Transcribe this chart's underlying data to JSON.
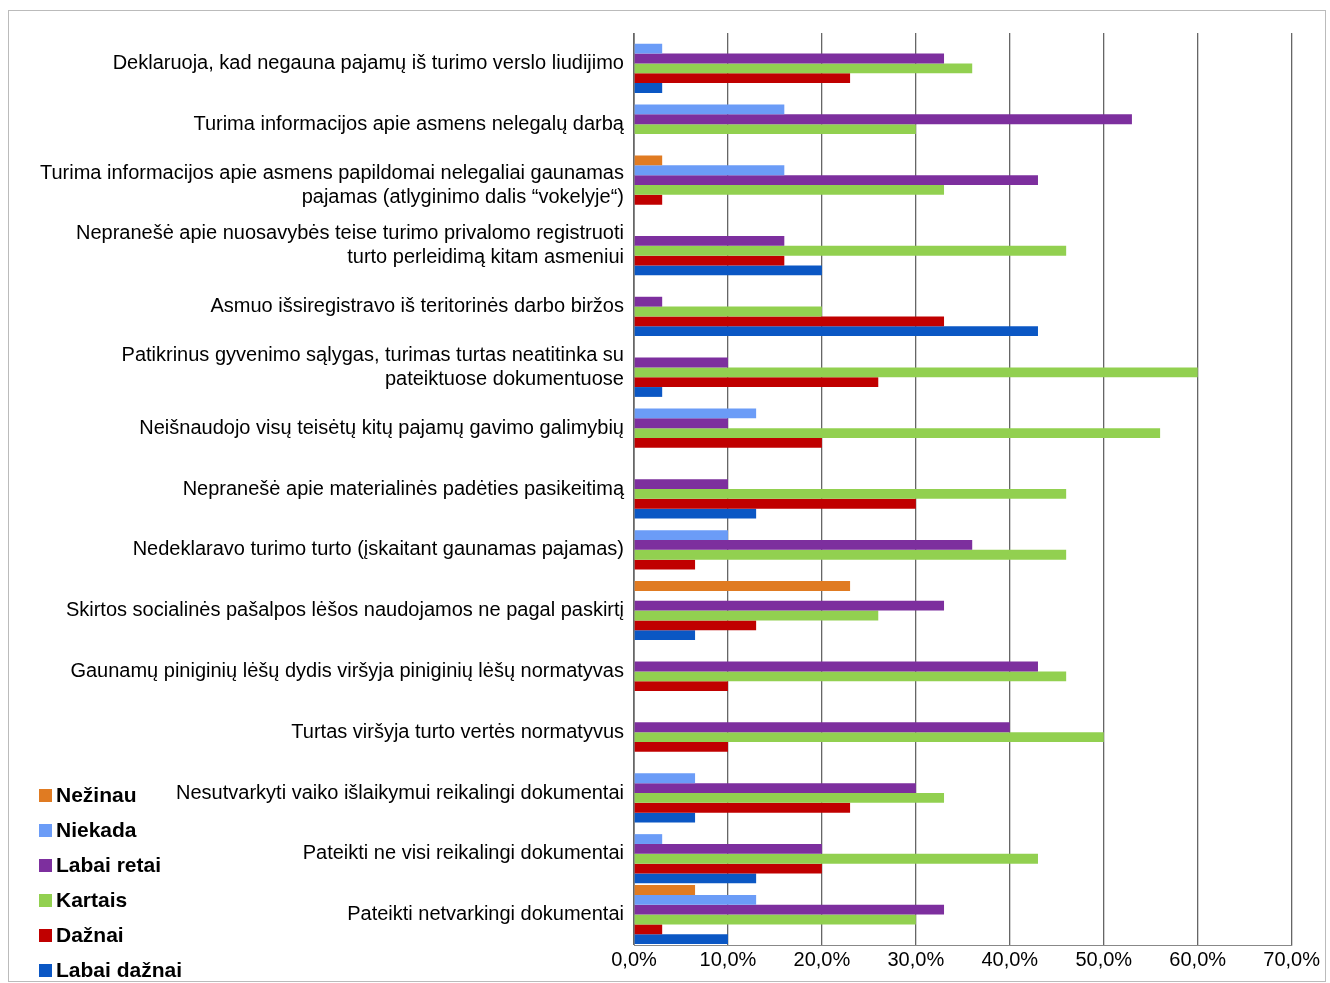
{
  "chart_data": {
    "type": "bar",
    "orientation": "horizontal",
    "categories": [
      "Deklaruoja, kad negauna pajamų iš turimo verslo liudijimo",
      "Turima informacijos apie asmens nelegalų darbą",
      "Turima informacijos apie asmens papildomai nelegaliai gaunamas pajamas (atlyginimo dalis “vokelyje“)",
      "Nepranešė apie nuosavybės teise turimo privalomo registruoti turto perleidimą kitam asmeniui",
      "Asmuo išsiregistravo iš teritorinės darbo biržos",
      "Patikrinus gyvenimo sąlygas, turimas turtas neatitinka su pateiktuose dokumentuose",
      "Neišnaudojo visų teisėtų kitų pajamų gavimo galimybių",
      "Nepranešė apie materialinės padėties pasikeitimą",
      "Nedeklaravo turimo turto (įskaitant gaunamas pajamas)",
      "Skirtos socialinės pašalpos lėšos naudojamos ne pagal paskirtį",
      "Gaunamų piniginių lėšų dydis viršyja piniginių lėšų normatyvas",
      "Turtas viršyja turto vertės normatyvus",
      "Nesutvarkyti vaiko išlaikymui reikalingi dokumentai",
      "Pateikti ne visi reikalingi dokumentai",
      "Pateikti netvarkingi dokumentai"
    ],
    "series": [
      {
        "name": "Nežinau",
        "color": "#e07b22",
        "values": [
          null,
          null,
          3,
          null,
          null,
          null,
          null,
          null,
          null,
          23,
          null,
          null,
          null,
          null,
          6.5
        ]
      },
      {
        "name": "Niekada",
        "color": "#6b9cf7",
        "values": [
          3,
          16,
          16,
          null,
          null,
          null,
          13,
          null,
          10,
          null,
          null,
          null,
          6.5,
          3,
          13
        ]
      },
      {
        "name": "Labai retai",
        "color": "#7d2f9e",
        "values": [
          33,
          53,
          43,
          16,
          3,
          10,
          10,
          10,
          36,
          33,
          43,
          40,
          30,
          20,
          33
        ]
      },
      {
        "name": "Kartais",
        "color": "#92d050",
        "values": [
          36,
          30,
          33,
          46,
          20,
          60,
          56,
          46,
          46,
          26,
          46,
          50,
          33,
          43,
          30
        ]
      },
      {
        "name": "Dažnai",
        "color": "#c00000",
        "values": [
          23,
          null,
          3,
          16,
          33,
          26,
          20,
          30,
          6.5,
          13,
          10,
          10,
          23,
          20,
          3
        ]
      },
      {
        "name": "Labai dažnai",
        "color": "#0b57c4",
        "values": [
          3,
          null,
          null,
          20,
          43,
          3,
          null,
          13,
          null,
          6.5,
          null,
          null,
          6.5,
          13,
          10
        ]
      }
    ],
    "xlim": [
      0,
      70
    ],
    "xticks": [
      {
        "value": 0,
        "label": "0,0%"
      },
      {
        "value": 10,
        "label": "10,0%"
      },
      {
        "value": 20,
        "label": "20,0%"
      },
      {
        "value": 30,
        "label": "30,0%"
      },
      {
        "value": 40,
        "label": "40,0%"
      },
      {
        "value": 50,
        "label": "50,0%"
      },
      {
        "value": 60,
        "label": "60,0%"
      },
      {
        "value": 70,
        "label": "70,0%"
      }
    ],
    "grid": "x",
    "legend": "bottom left"
  }
}
